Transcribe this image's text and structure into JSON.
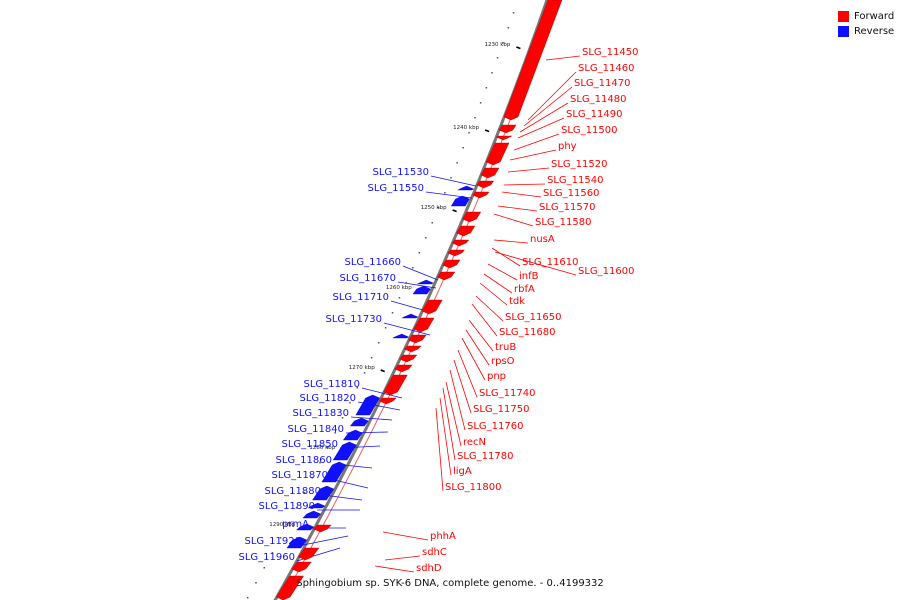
{
  "colors": {
    "forward": "#ff0000",
    "reverse": "#1010ff",
    "axis": "#777777"
  },
  "legend": {
    "forward_label": "Forward",
    "reverse_label": "Reverse"
  },
  "footer": {
    "caption": "Sphingobium sp. SYK-6 DNA, complete genome. - 0..4199332"
  },
  "axis_ticks": [
    "1230 kbp",
    "1240 kbp",
    "1250 kbp",
    "1260 kbp",
    "1270 kbp",
    "1280 kbp",
    "1290 kbp"
  ],
  "forward_labels": [
    "SLG_11450",
    "SLG_11460",
    "SLG_11470",
    "SLG_11480",
    "SLG_11490",
    "SLG_11500",
    "phy",
    "SLG_11520",
    "SLG_11540",
    "SLG_11560",
    "SLG_11570",
    "SLG_11580",
    "nusA",
    "SLG_11610",
    "SLG_11600",
    "infB",
    "rbfA",
    "tdk",
    "SLG_11650",
    "SLG_11680",
    "truB",
    "rpsO",
    "pnp",
    "SLG_11740",
    "SLG_11750",
    "SLG_11760",
    "recN",
    "SLG_11780",
    "ligA",
    "SLG_11800",
    "phhA",
    "sdhC",
    "sdhD"
  ],
  "reverse_labels": [
    "SLG_11530",
    "SLG_11550",
    "SLG_11660",
    "SLG_11670",
    "SLG_11710",
    "SLG_11730",
    "SLG_11810",
    "SLG_11820",
    "SLG_11830",
    "SLG_11840",
    "SLG_11850",
    "SLG_11860",
    "SLG_11870",
    "SLG_11880",
    "SLG_11890",
    "prmA",
    "SLG_11920",
    "SLG_11960"
  ]
}
